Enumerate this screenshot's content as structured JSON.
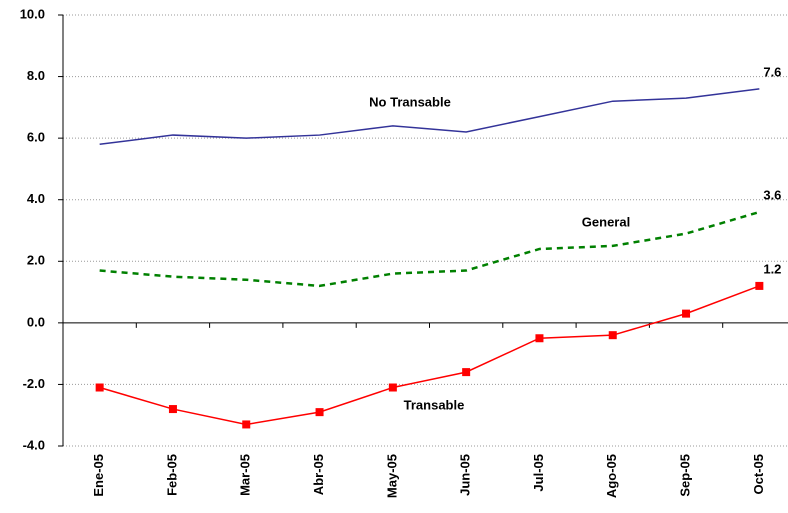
{
  "chart_data": {
    "type": "line",
    "categories": [
      "Ene-05",
      "Feb-05",
      "Mar-05",
      "Abr-05",
      "May-05",
      "Jun-05",
      "Jul-05",
      "Ago-05",
      "Sep-05",
      "Oct-05"
    ],
    "series": [
      {
        "name": "No Transable",
        "color": "#333399",
        "style": "solid",
        "marker": false,
        "values": [
          5.8,
          6.1,
          6.0,
          6.1,
          6.4,
          6.2,
          6.7,
          7.2,
          7.3,
          7.6
        ]
      },
      {
        "name": "General",
        "color": "#008000",
        "style": "dashed",
        "marker": false,
        "values": [
          1.7,
          1.5,
          1.4,
          1.2,
          1.6,
          1.7,
          2.4,
          2.5,
          2.9,
          3.6
        ]
      },
      {
        "name": "Transable",
        "color": "#ff0000",
        "style": "solid",
        "marker": true,
        "values": [
          -2.1,
          -2.8,
          -3.3,
          -2.9,
          -2.1,
          -1.6,
          -0.5,
          -0.4,
          0.3,
          1.2
        ]
      }
    ],
    "ylim": [
      -4,
      10
    ],
    "yticks": [
      {
        "value": -4,
        "label": "-4.0"
      },
      {
        "value": -2,
        "label": "-2.0"
      },
      {
        "value": 0,
        "label": "0.0"
      },
      {
        "value": 2,
        "label": "2.0"
      },
      {
        "value": 4,
        "label": "4.0"
      },
      {
        "value": 6,
        "label": "6.0"
      },
      {
        "value": 8,
        "label": "8.0"
      },
      {
        "value": 10,
        "label": "10.0"
      }
    ],
    "grid": true
  }
}
